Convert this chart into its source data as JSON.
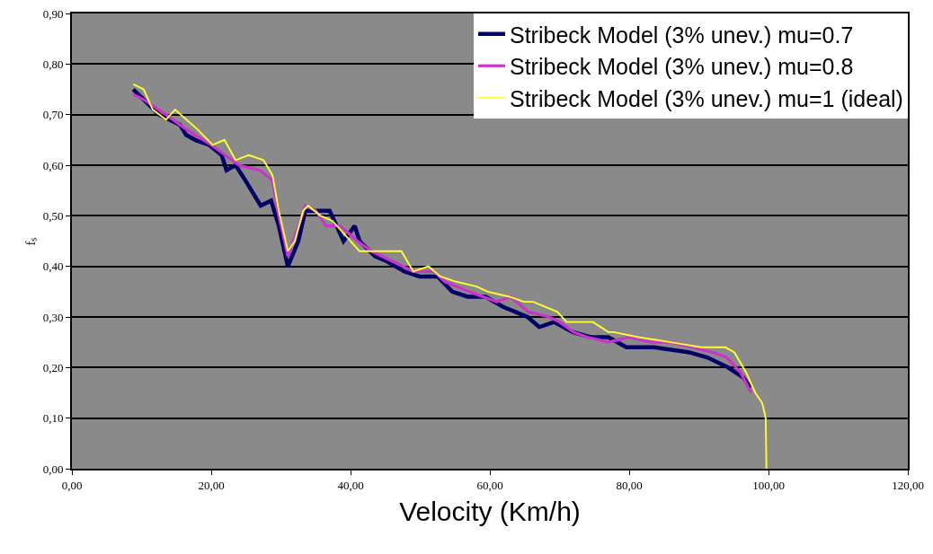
{
  "chart_data": {
    "type": "line",
    "xlabel": "Velocity (Km/h)",
    "ylabel": "fₛ",
    "xlim": [
      0,
      120
    ],
    "ylim": [
      0,
      0.9
    ],
    "xticks": [
      {
        "value": 0,
        "label": "0,00"
      },
      {
        "value": 20,
        "label": "20,00"
      },
      {
        "value": 40,
        "label": "40,00"
      },
      {
        "value": 60,
        "label": "60,00"
      },
      {
        "value": 80,
        "label": "80,00"
      },
      {
        "value": 100,
        "label": "100,00"
      },
      {
        "value": 120,
        "label": "120,00"
      }
    ],
    "yticks": [
      {
        "value": 0,
        "label": "0,00"
      },
      {
        "value": 0.1,
        "label": "0,10"
      },
      {
        "value": 0.2,
        "label": "0,20"
      },
      {
        "value": 0.3,
        "label": "0,30"
      },
      {
        "value": 0.4,
        "label": "0,40"
      },
      {
        "value": 0.5,
        "label": "0,50"
      },
      {
        "value": 0.6,
        "label": "0,60"
      },
      {
        "value": 0.7,
        "label": "0,70"
      },
      {
        "value": 0.8,
        "label": "0,80"
      },
      {
        "value": 0.9,
        "label": "0,90"
      }
    ],
    "grid": "y",
    "legend": "top right",
    "marker": "none",
    "line_style": "solid",
    "series": [
      {
        "name": "Stribeck Model (3% unev.) mu=0.7",
        "color": "#000066",
        "x": [
          8.8,
          10.3,
          12.5,
          15.5,
          16.4,
          17.7,
          19.7,
          21.5,
          22.2,
          23.5,
          24.9,
          27.1,
          28.6,
          29.7,
          31,
          32.5,
          33.5,
          35.7,
          37,
          39,
          40.6,
          41.3,
          43.5,
          45.2,
          47.7,
          49.9,
          52.5,
          54.6,
          56.8,
          59.4,
          61.9,
          65.4,
          67.1,
          69.2,
          71.9,
          74.5,
          77,
          79.6,
          83.5,
          88.6,
          91.2,
          94.2,
          96.4,
          97.4
        ],
        "values": [
          0.75,
          0.73,
          0.7,
          0.68,
          0.66,
          0.65,
          0.64,
          0.62,
          0.59,
          0.6,
          0.57,
          0.52,
          0.53,
          0.48,
          0.4,
          0.45,
          0.51,
          0.51,
          0.51,
          0.45,
          0.48,
          0.45,
          0.42,
          0.41,
          0.39,
          0.38,
          0.38,
          0.35,
          0.34,
          0.34,
          0.32,
          0.3,
          0.28,
          0.29,
          0.27,
          0.26,
          0.26,
          0.24,
          0.24,
          0.23,
          0.22,
          0.2,
          0.18,
          0.16
        ]
      },
      {
        "name": "Stribeck Model (3% unev.) mu=0.8",
        "color": "#cc33cc",
        "x": [
          8.8,
          10.3,
          13.5,
          16.5,
          20,
          22,
          24,
          27,
          28.8,
          29.7,
          31,
          32.3,
          33.5,
          35,
          36.5,
          38.5,
          41,
          43,
          46,
          49,
          52,
          53.5,
          57,
          59,
          61,
          63,
          65.5,
          68.5,
          70,
          72,
          74,
          77,
          80,
          83,
          86,
          89,
          92,
          94,
          96,
          97.5
        ],
        "values": [
          0.74,
          0.73,
          0.7,
          0.67,
          0.64,
          0.62,
          0.6,
          0.59,
          0.57,
          0.5,
          0.42,
          0.47,
          0.52,
          0.51,
          0.48,
          0.48,
          0.45,
          0.43,
          0.41,
          0.39,
          0.39,
          0.37,
          0.35,
          0.34,
          0.33,
          0.34,
          0.31,
          0.3,
          0.29,
          0.27,
          0.26,
          0.25,
          0.26,
          0.25,
          0.25,
          0.24,
          0.23,
          0.22,
          0.19,
          0.15
        ]
      },
      {
        "name": "Stribeck Model (3% unev.) mu=1 (ideal)",
        "color": "#ffff33",
        "x": [
          8.8,
          10.3,
          11.6,
          13.5,
          14.8,
          18.1,
          20.2,
          21.9,
          23.5,
          25.4,
          27.5,
          28.8,
          29.7,
          31,
          32,
          33.2,
          33.9,
          35.7,
          37.4,
          41.3,
          42.6,
          44.7,
          47.3,
          49,
          51.2,
          52.9,
          55.1,
          58.1,
          59.7,
          62.8,
          64.9,
          66.2,
          69.7,
          71,
          74.8,
          77,
          77.8,
          81.3,
          86,
          90.3,
          93.8,
          95.1,
          96.8,
          98.1,
          99.1,
          99.6,
          99.7
        ],
        "values": [
          0.76,
          0.75,
          0.71,
          0.69,
          0.71,
          0.67,
          0.64,
          0.65,
          0.61,
          0.62,
          0.61,
          0.58,
          0.51,
          0.43,
          0.45,
          0.51,
          0.52,
          0.5,
          0.49,
          0.43,
          0.43,
          0.43,
          0.43,
          0.39,
          0.4,
          0.38,
          0.37,
          0.36,
          0.35,
          0.34,
          0.33,
          0.33,
          0.31,
          0.29,
          0.29,
          0.27,
          0.27,
          0.26,
          0.25,
          0.24,
          0.24,
          0.23,
          0.19,
          0.15,
          0.13,
          0.1,
          0
        ]
      }
    ]
  }
}
